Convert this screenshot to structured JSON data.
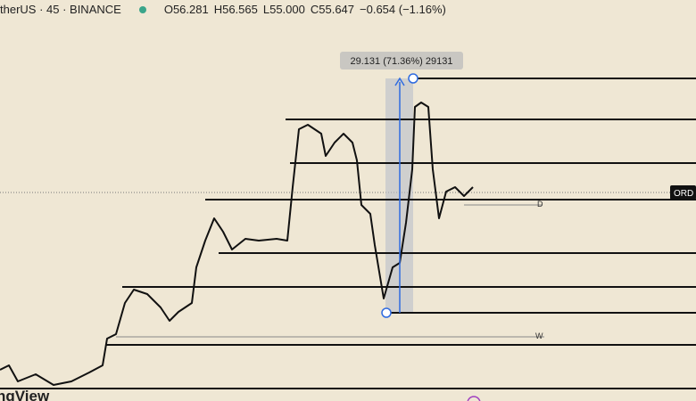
{
  "header": {
    "symbol": "therUS · 45 · BINANCE",
    "open": "O56.281",
    "high": "H56.565",
    "low": "L55.000",
    "close": "C55.647",
    "change": "−0.654 (−1.16%)"
  },
  "measure": {
    "label": "29.131 (71.36%) 29131"
  },
  "price_tag": "ORD",
  "level_labels": [
    "D",
    "W"
  ],
  "watermark": "ngView"
}
